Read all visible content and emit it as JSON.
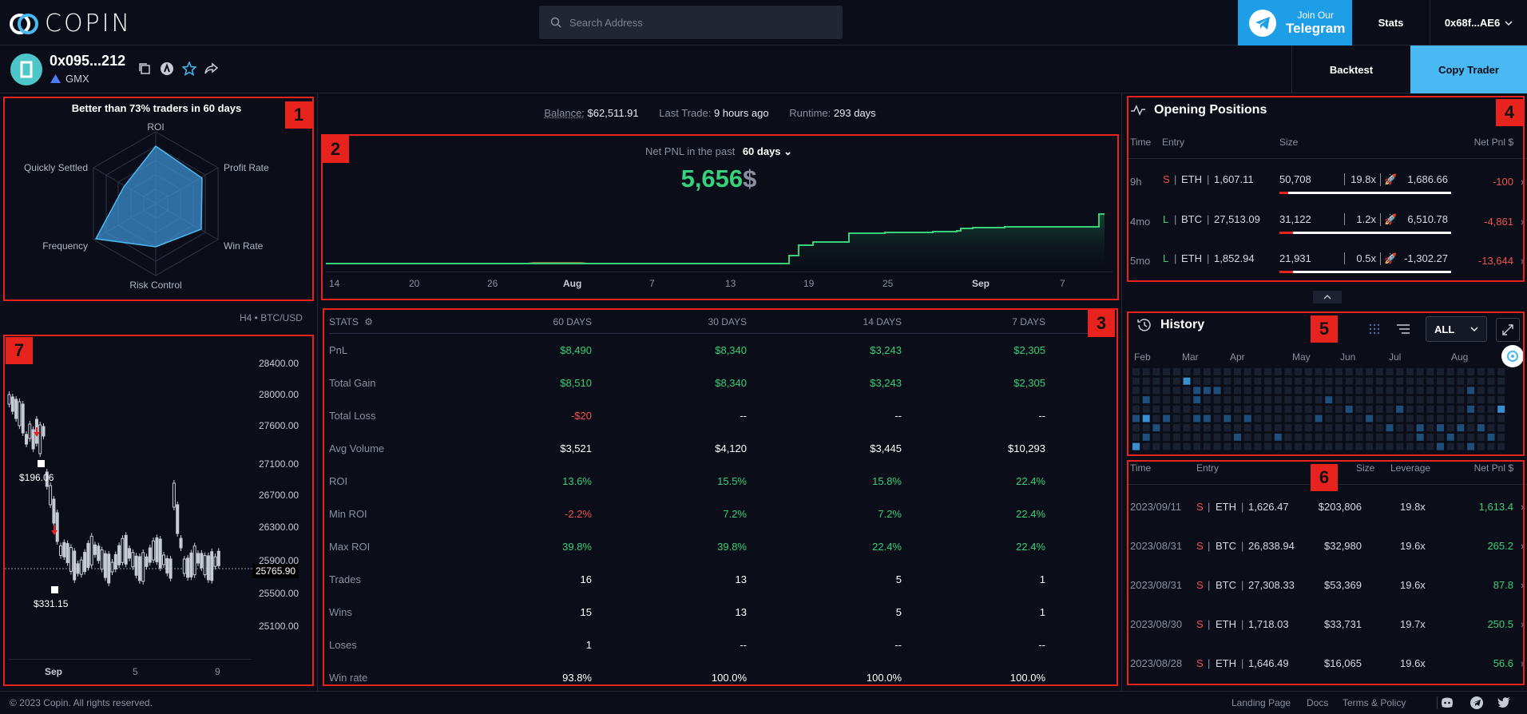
{
  "header": {
    "logo_text": "COPIN",
    "search_placeholder": "Search Address",
    "telegram_line1": "Join Our",
    "telegram_line2": "Telegram",
    "stats_label": "Stats",
    "wallet_label": "0x68f...AE6"
  },
  "trader": {
    "address": "0x095...212",
    "protocol": "GMX",
    "backtest_label": "Backtest",
    "copy_label": "Copy Trader"
  },
  "radar": {
    "title": "Better than 73% traders in 60 days",
    "axes": [
      "ROI",
      "Profit Rate",
      "Win Rate",
      "Risk Control",
      "Frequency",
      "Quickly Settled"
    ]
  },
  "badges": [
    "1",
    "2",
    "3",
    "4",
    "5",
    "6",
    "7"
  ],
  "summary": {
    "balance_label": "Balance:",
    "balance_value": "$62,511.91",
    "last_trade_label": "Last Trade:",
    "last_trade_value": "9 hours ago",
    "runtime_label": "Runtime:",
    "runtime_value": "293 days"
  },
  "pnl": {
    "label": "Net PNL in the past",
    "period": "60 days",
    "value": "5,656",
    "unit": "$",
    "x_ticks": [
      "14",
      "20",
      "26",
      "Aug",
      "7",
      "13",
      "19",
      "25",
      "Sep",
      "7"
    ]
  },
  "stats": {
    "title": "STATS",
    "columns": [
      "60 DAYS",
      "30 DAYS",
      "14 DAYS",
      "7 DAYS"
    ],
    "rows": [
      {
        "label": "PnL",
        "values": [
          "$8,490",
          "$8,340",
          "$3,243",
          "$2,305"
        ],
        "color": "green"
      },
      {
        "label": "Total Gain",
        "values": [
          "$8,510",
          "$8,340",
          "$3,243",
          "$2,305"
        ],
        "color": "green"
      },
      {
        "label": "Total Loss",
        "values": [
          "-$20",
          "--",
          "--",
          "--"
        ],
        "color": "mixed"
      },
      {
        "label": "Avg Volume",
        "values": [
          "$3,521",
          "$4,120",
          "$3,445",
          "$10,293"
        ],
        "color": "white"
      },
      {
        "label": "ROI",
        "values": [
          "13.6%",
          "15.5%",
          "15.8%",
          "22.4%"
        ],
        "color": "green"
      },
      {
        "label": "Min ROI",
        "values": [
          "-2.2%",
          "7.2%",
          "7.2%",
          "22.4%"
        ],
        "color": "mixed"
      },
      {
        "label": "Max ROI",
        "values": [
          "39.8%",
          "39.8%",
          "22.4%",
          "22.4%"
        ],
        "color": "green"
      },
      {
        "label": "Trades",
        "values": [
          "16",
          "13",
          "5",
          "1"
        ],
        "color": "white"
      },
      {
        "label": "Wins",
        "values": [
          "15",
          "13",
          "5",
          "1"
        ],
        "color": "white"
      },
      {
        "label": "Loses",
        "values": [
          "1",
          "--",
          "--",
          "--"
        ],
        "color": "white"
      },
      {
        "label": "Win rate",
        "values": [
          "93.8%",
          "100.0%",
          "100.0%",
          "100.0%"
        ],
        "color": "white"
      }
    ]
  },
  "positions": {
    "title": "Opening Positions",
    "headers": [
      "Time",
      "Entry",
      "Size",
      "Net Pnl $"
    ],
    "rows": [
      {
        "time": "9h",
        "side": "S",
        "token": "ETH",
        "entry": "1,607.11",
        "size": "50,708",
        "leverage": "19.8x",
        "liq": "1,686.66",
        "pnl": "-100",
        "fill": 0.05
      },
      {
        "time": "4mo",
        "side": "L",
        "token": "BTC",
        "entry": "27,513.09",
        "size": "31,122",
        "leverage": "1.2x",
        "liq": "6,510.78",
        "pnl": "-4,861",
        "fill": 0.08
      },
      {
        "time": "5mo",
        "side": "L",
        "token": "ETH",
        "entry": "1,852.94",
        "size": "21,931",
        "leverage": "0.5x",
        "liq": "-1,302.27",
        "pnl": "-13,644",
        "fill": 0.08
      }
    ]
  },
  "history": {
    "title": "History",
    "filter": "ALL",
    "months": [
      "Feb",
      "Mar",
      "Apr",
      "May",
      "Jun",
      "Jul",
      "Aug"
    ],
    "headers": [
      "Time",
      "Entry",
      "Size",
      "Leverage",
      "Net Pnl $"
    ],
    "rows": [
      {
        "date": "2023/09/11",
        "side": "S",
        "token": "ETH",
        "entry": "1,626.47",
        "size": "$203,806",
        "leverage": "19.8x",
        "pnl": "1,613.4"
      },
      {
        "date": "2023/08/31",
        "side": "S",
        "token": "BTC",
        "entry": "26,838.94",
        "size": "$32,980",
        "leverage": "19.6x",
        "pnl": "265.2"
      },
      {
        "date": "2023/08/31",
        "side": "S",
        "token": "BTC",
        "entry": "27,308.33",
        "size": "$53,369",
        "leverage": "19.6x",
        "pnl": "87.8"
      },
      {
        "date": "2023/08/30",
        "side": "S",
        "token": "ETH",
        "entry": "1,718.03",
        "size": "$33,731",
        "leverage": "19.7x",
        "pnl": "250.5"
      },
      {
        "date": "2023/08/28",
        "side": "S",
        "token": "ETH",
        "entry": "1,646.49",
        "size": "$16,065",
        "leverage": "19.6x",
        "pnl": "56.6"
      }
    ]
  },
  "candle": {
    "pair_label": "H4 • BTC/USD",
    "y_ticks": [
      "28400.00",
      "28000.00",
      "27600.00",
      "27100.00",
      "26700.00",
      "26300.00",
      "25900.00",
      "25500.00",
      "25100.00"
    ],
    "current_price": "25765.90",
    "marker1": "$196.06",
    "marker2": "$331.15",
    "x_ticks": [
      "Sep",
      "5",
      "9"
    ]
  },
  "footer": {
    "copyright": "© 2023 Copin. All rights reserved.",
    "links": [
      "Landing Page",
      "Docs",
      "Terms & Policy"
    ]
  },
  "colors": {
    "green": "#38d17b",
    "red": "#f0534f",
    "accent": "#4ab8f3",
    "highlight": "#e8231d"
  }
}
